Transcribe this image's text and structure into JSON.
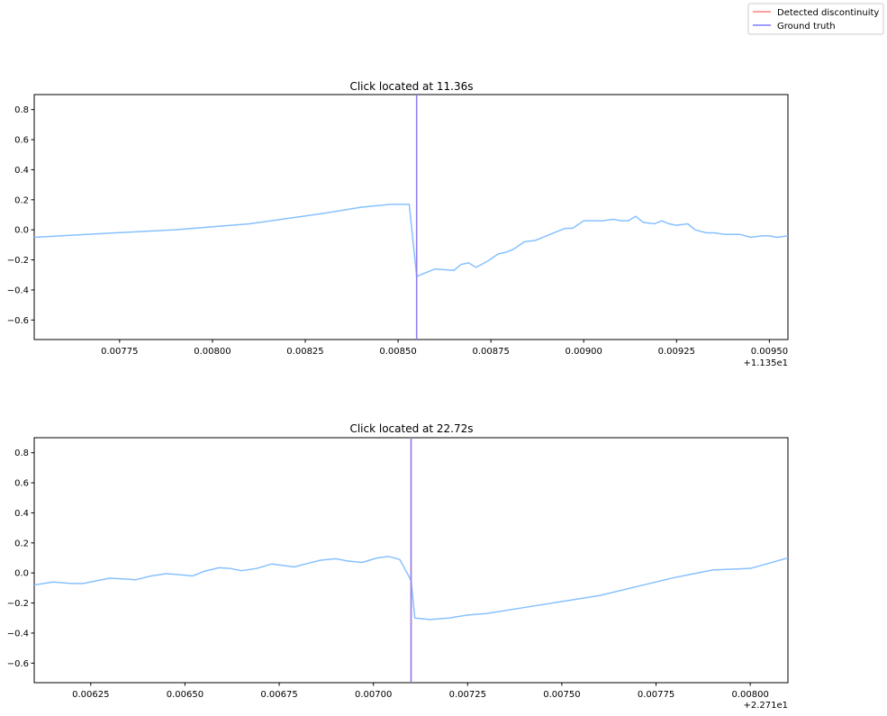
{
  "legend": {
    "entries": [
      {
        "label": "Detected discontinuity",
        "color": "#ff7f7f"
      },
      {
        "label": "Ground truth",
        "color": "#7f7fff"
      }
    ]
  },
  "chart_data": [
    {
      "type": "line",
      "title": "Click located at 11.36s",
      "xlabel": "",
      "ylabel": "",
      "x_offset_label": "+1.135e1",
      "xlim": [
        0.00752,
        0.00955
      ],
      "ylim": [
        -0.73,
        0.9
      ],
      "x_ticks": [
        0.00775,
        0.008,
        0.00825,
        0.0085,
        0.00875,
        0.009,
        0.00925,
        0.0095
      ],
      "x_tick_labels": [
        "0.00775",
        "0.00800",
        "0.00825",
        "0.00850",
        "0.00875",
        "0.00900",
        "0.00925",
        "0.00950"
      ],
      "y_ticks": [
        -0.6,
        -0.4,
        -0.2,
        0.0,
        0.2,
        0.4,
        0.6,
        0.8
      ],
      "y_tick_labels": [
        "−0.6",
        "−0.4",
        "−0.2",
        "0.0",
        "0.2",
        "0.4",
        "0.6",
        "0.8"
      ],
      "grid": false,
      "signal_color": "#87c1ff",
      "series": [
        {
          "x": [
            0.00752,
            0.0077,
            0.0079,
            0.0081,
            0.0083,
            0.0084,
            0.00848,
            0.00853,
            0.00855,
            0.00857,
            0.0086,
            0.00865,
            0.00867,
            0.00869,
            0.00871,
            0.00874,
            0.00877,
            0.00879,
            0.00881,
            0.00884,
            0.00887,
            0.0089,
            0.00893,
            0.00895,
            0.00897,
            0.009,
            0.00903,
            0.00905,
            0.00908,
            0.0091,
            0.00912,
            0.00914,
            0.00916,
            0.00919,
            0.00921,
            0.00923,
            0.00925,
            0.00928,
            0.0093,
            0.00933,
            0.00935,
            0.00938,
            0.0094,
            0.00942,
            0.00945,
            0.00948,
            0.0095,
            0.00952,
            0.00955
          ],
          "y": [
            -0.05,
            -0.025,
            0.0,
            0.04,
            0.11,
            0.15,
            0.17,
            0.17,
            -0.31,
            -0.29,
            -0.26,
            -0.27,
            -0.23,
            -0.22,
            -0.25,
            -0.21,
            -0.16,
            -0.15,
            -0.13,
            -0.08,
            -0.07,
            -0.04,
            -0.01,
            0.01,
            0.01,
            0.06,
            0.06,
            0.06,
            0.07,
            0.06,
            0.06,
            0.09,
            0.05,
            0.04,
            0.06,
            0.04,
            0.03,
            0.04,
            0.0,
            -0.02,
            -0.02,
            -0.03,
            -0.03,
            -0.03,
            -0.05,
            -0.04,
            -0.04,
            -0.05,
            -0.04
          ]
        }
      ],
      "detected_x": 0.00855,
      "ground_truth_x": 0.00855
    },
    {
      "type": "line",
      "title": "Click located at 22.72s",
      "xlabel": "",
      "ylabel": "",
      "x_offset_label": "+2.271e1",
      "xlim": [
        0.0061,
        0.0081
      ],
      "ylim": [
        -0.73,
        0.9
      ],
      "x_ticks": [
        0.00625,
        0.0065,
        0.00675,
        0.007,
        0.00725,
        0.0075,
        0.00775,
        0.008
      ],
      "x_tick_labels": [
        "0.00625",
        "0.00650",
        "0.00675",
        "0.00700",
        "0.00725",
        "0.00750",
        "0.00775",
        "0.00800"
      ],
      "y_ticks": [
        -0.6,
        -0.4,
        -0.2,
        0.0,
        0.2,
        0.4,
        0.6,
        0.8
      ],
      "y_tick_labels": [
        "−0.6",
        "−0.4",
        "−0.2",
        "0.0",
        "0.2",
        "0.4",
        "0.6",
        "0.8"
      ],
      "grid": false,
      "signal_color": "#87c1ff",
      "series": [
        {
          "x": [
            0.0061,
            0.00615,
            0.0062,
            0.00623,
            0.00627,
            0.0063,
            0.00634,
            0.00637,
            0.00641,
            0.00645,
            0.00648,
            0.00652,
            0.00655,
            0.00659,
            0.00662,
            0.00665,
            0.00669,
            0.00673,
            0.00676,
            0.00679,
            0.00682,
            0.00686,
            0.0069,
            0.00693,
            0.00697,
            0.00701,
            0.00704,
            0.00707,
            0.0071,
            0.00711,
            0.00715,
            0.0072,
            0.00725,
            0.0073,
            0.0074,
            0.0075,
            0.0076,
            0.0077,
            0.0078,
            0.0079,
            0.008,
            0.0081
          ],
          "y": [
            -0.08,
            -0.06,
            -0.07,
            -0.07,
            -0.05,
            -0.035,
            -0.04,
            -0.045,
            -0.02,
            -0.005,
            -0.01,
            -0.02,
            0.01,
            0.035,
            0.03,
            0.015,
            0.03,
            0.06,
            0.05,
            0.04,
            0.06,
            0.085,
            0.095,
            0.08,
            0.07,
            0.1,
            0.11,
            0.09,
            -0.05,
            -0.3,
            -0.31,
            -0.3,
            -0.28,
            -0.27,
            -0.23,
            -0.19,
            -0.15,
            -0.09,
            -0.03,
            0.02,
            0.03,
            0.1
          ]
        }
      ],
      "detected_x": 0.0071,
      "ground_truth_x": 0.0071
    }
  ]
}
